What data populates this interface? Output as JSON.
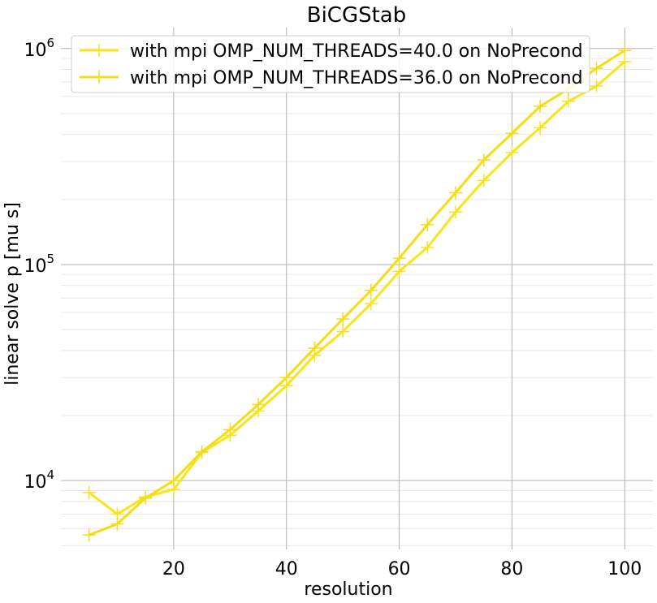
{
  "chart_data": {
    "type": "line",
    "title": "BiCGStab",
    "xlabel": "resolution",
    "ylabel": "linear solve p [mu s]",
    "xlim": [
      0,
      105
    ],
    "ylim": [
      4800,
      1250000
    ],
    "yscale": "log",
    "grid": true,
    "legend_position": "top-left",
    "x_ticks": [
      20,
      40,
      60,
      80,
      100
    ],
    "y_ticks": [
      {
        "value": 10000,
        "base": "10",
        "exp": "4"
      },
      {
        "value": 100000,
        "base": "10",
        "exp": "5"
      },
      {
        "value": 1000000,
        "base": "10",
        "exp": "6"
      }
    ],
    "x": [
      5,
      10,
      15,
      20,
      25,
      30,
      35,
      40,
      45,
      50,
      55,
      60,
      65,
      70,
      75,
      80,
      85,
      90,
      95,
      100
    ],
    "series": [
      {
        "name": "with mpi OMP_NUM_THREADS=40.0 on NoPrecond",
        "color": "#f7e51c",
        "values": [
          8800,
          7000,
          8400,
          9100,
          13500,
          16200,
          21000,
          27500,
          38000,
          49000,
          66000,
          93000,
          120000,
          175000,
          245000,
          330000,
          430000,
          570000,
          670000,
          870000
        ]
      },
      {
        "name": "with mpi OMP_NUM_THREADS=36.0 on NoPrecond",
        "color": "#f5dc14",
        "values": [
          5600,
          6300,
          8300,
          10000,
          13600,
          17200,
          22500,
          30000,
          41000,
          56000,
          76000,
          107000,
          153000,
          215000,
          305000,
          405000,
          540000,
          650000,
          810000,
          980000
        ]
      }
    ]
  }
}
